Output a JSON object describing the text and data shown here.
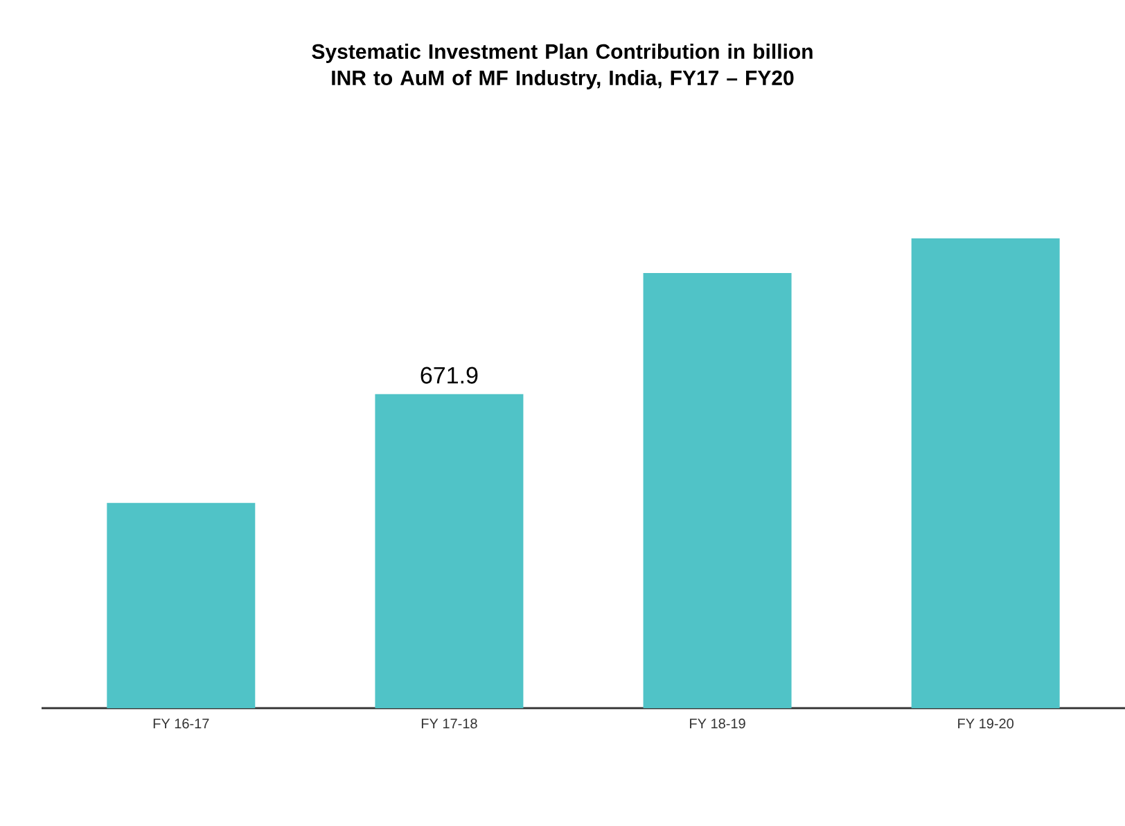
{
  "chart_data": {
    "type": "bar",
    "title": "Systematic Investment Plan Contribution in billion INR to AuM of MF Industry, India, FY17 – FY20",
    "categories": [
      "FY 16-17",
      "FY 17-18",
      "FY 18-19",
      "FY 19-20"
    ],
    "values": [
      439,
      671.9,
      931,
      1005
    ],
    "value_labels": [
      null,
      "671.9",
      null,
      null
    ],
    "color": "#50c3c7"
  }
}
